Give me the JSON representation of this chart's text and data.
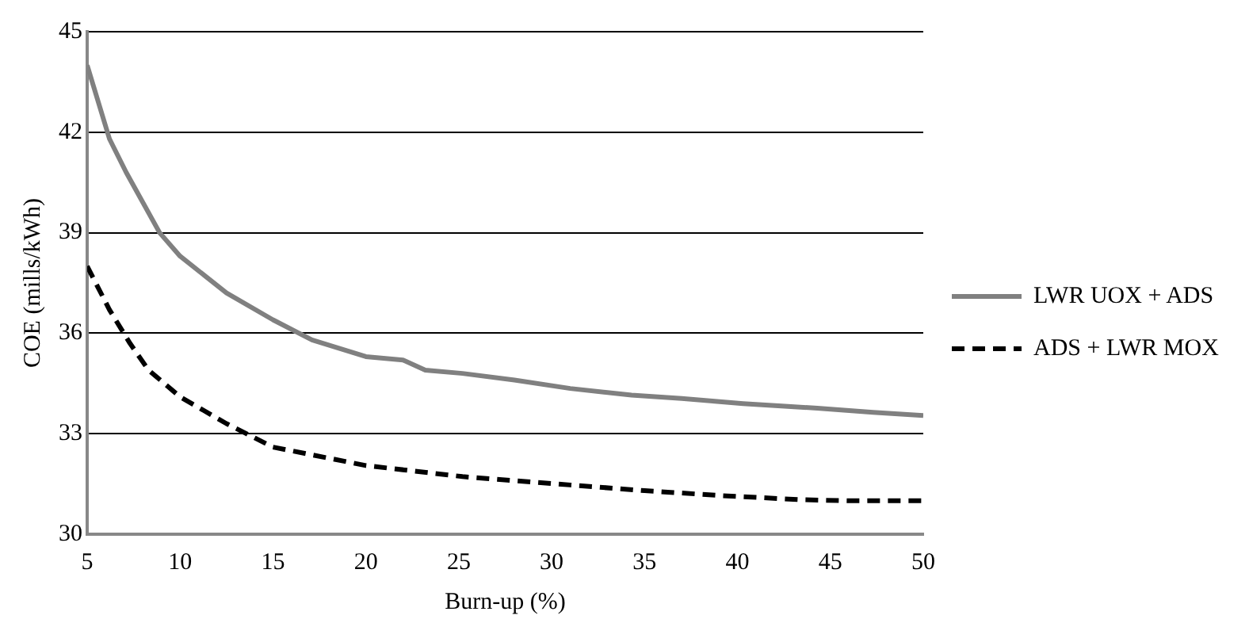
{
  "chart_data": {
    "type": "line",
    "xlabel": "Burn-up (%)",
    "ylabel": "COE (mills/kWh)",
    "xlim": [
      5,
      50
    ],
    "xticks": [
      5,
      10,
      15,
      20,
      25,
      30,
      35,
      40,
      45,
      50
    ],
    "ylim": [
      30,
      45
    ],
    "yticks": [
      30,
      33,
      36,
      39,
      42,
      45
    ],
    "grid": "y",
    "legend": "right",
    "marker": "none",
    "series": [
      {
        "name": "LWR UOX + ADS",
        "color": "#808080",
        "line_style": "solid",
        "x": [
          5,
          6.2,
          7.1,
          8.9,
          10,
          12.5,
          15,
          17.1,
          20,
          22,
          23.2,
          25.2,
          28,
          31,
          34.3,
          37,
          40.3,
          44.3,
          47.3,
          50
        ],
        "values": [
          44.0,
          41.8,
          40.8,
          39.0,
          38.3,
          37.2,
          36.4,
          35.8,
          35.3,
          35.2,
          34.9,
          34.8,
          34.6,
          34.35,
          34.15,
          34.05,
          33.9,
          33.76,
          33.64,
          33.54
        ]
      },
      {
        "name": "ADS + LWR MOX",
        "color": "#000000",
        "line_style": "dashed",
        "x": [
          5,
          6.2,
          7.3,
          8.3,
          10,
          12.5,
          15,
          20,
          25.2,
          31,
          35,
          39.2,
          43.4,
          46,
          50
        ],
        "values": [
          38.0,
          36.7,
          35.7,
          34.9,
          34.1,
          33.3,
          32.6,
          32.05,
          31.72,
          31.47,
          31.3,
          31.15,
          31.03,
          31.0,
          31.0
        ]
      }
    ]
  }
}
